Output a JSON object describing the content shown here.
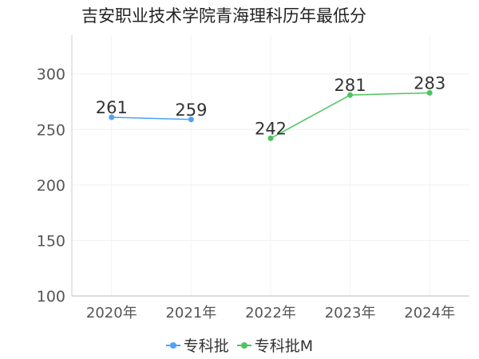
{
  "chart_data": {
    "type": "line",
    "title": "吉安职业技术学院青海理科历年最低分",
    "categories": [
      "2020年",
      "2021年",
      "2022年",
      "2023年",
      "2024年"
    ],
    "ylim": [
      100,
      335
    ],
    "yticks": [
      100,
      150,
      200,
      250,
      300
    ],
    "grid": true,
    "legend_position": "bottom",
    "series": [
      {
        "name": "专科批",
        "color": "#4da3f5",
        "values": [
          261,
          259,
          null,
          null,
          null
        ],
        "labels": [
          "261",
          "259",
          "",
          "",
          ""
        ]
      },
      {
        "name": "专科批M",
        "color": "#4cc55f",
        "values": [
          null,
          null,
          242,
          281,
          283
        ],
        "labels": [
          "",
          "",
          "242",
          "281",
          "283"
        ]
      }
    ]
  }
}
